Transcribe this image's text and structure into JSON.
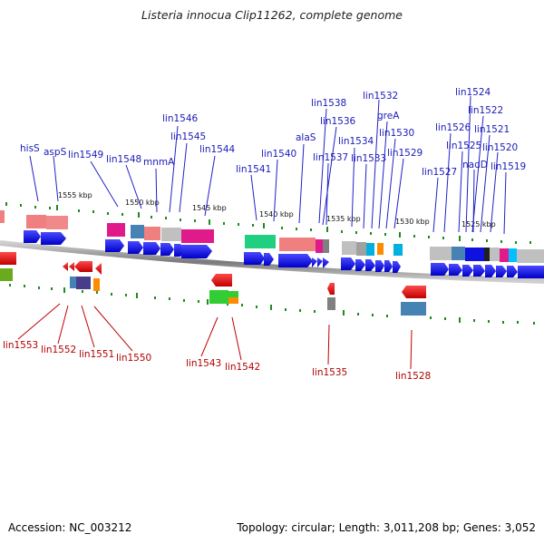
{
  "title": "Listeria innocua Clip11262, complete genome",
  "footer": {
    "accession": "Accession: NC_003212",
    "summary": "Topology: circular; Length: 3,011,208 bp; Genes: 3,052"
  },
  "kbp_labels": [
    "1555 kbp",
    "1550 kbp",
    "1545 kbp",
    "1540 kbp",
    "1535 kbp",
    "1530 kbp",
    "1525 kbp"
  ],
  "top_labels": [
    "hisS",
    "aspS",
    "lin1549",
    "lin1548",
    "mnmA",
    "lin1546",
    "lin1545",
    "lin1544",
    "lin1541",
    "lin1540",
    "alaS",
    "lin1538",
    "lin1536",
    "lin1537",
    "lin1534",
    "lin1533",
    "lin1532",
    "greA",
    "lin1530",
    "lin1529",
    "lin1527",
    "lin1526",
    "lin1525",
    "lin1524",
    "lin1522",
    "nadD",
    "lin1521",
    "lin1520",
    "lin1519"
  ],
  "bottom_labels": [
    "lin1553",
    "lin1552",
    "lin1551",
    "lin1550",
    "lin1543",
    "lin1542",
    "lin1535",
    "lin1528"
  ],
  "colors": {
    "top_label": "#1a1ab8",
    "bottom_label": "#b00000",
    "backbone": "#8a8a8a",
    "tick": "#1f8a1f",
    "forward_gene": "#1010e0",
    "reverse_gene": "#e00000"
  }
}
